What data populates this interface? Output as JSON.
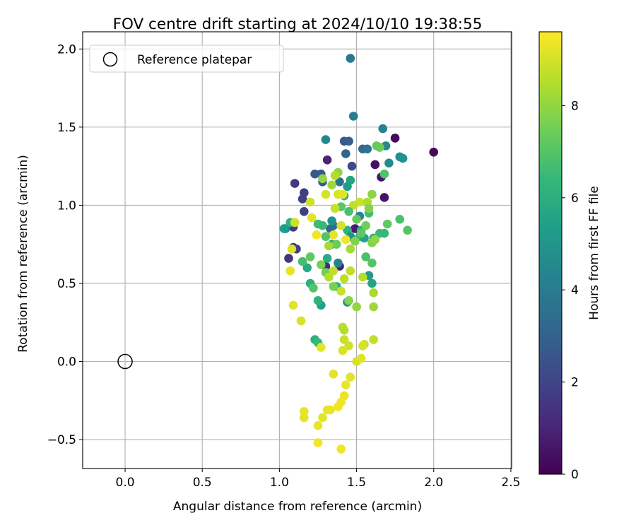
{
  "chart_data": {
    "type": "scatter",
    "title": "FOV centre drift starting at 2024/10/10 19:38:55",
    "xlabel": "Angular distance from reference (arcmin)",
    "ylabel": "Rotation from reference (arcmin)",
    "xlim": [
      -0.275,
      2.505
    ],
    "ylim": [
      -0.685,
      2.11
    ],
    "xticks": [
      0.0,
      0.5,
      1.0,
      1.5,
      2.0,
      2.5
    ],
    "xtick_labels": [
      "0.0",
      "0.5",
      "1.0",
      "1.5",
      "2.0",
      "2.5"
    ],
    "yticks": [
      -0.5,
      0.0,
      0.5,
      1.0,
      1.5,
      2.0
    ],
    "ytick_labels": [
      "−0.5",
      "0.0",
      "0.5",
      "1.0",
      "1.5",
      "2.0"
    ],
    "grid": true,
    "legend": {
      "position": "top-left",
      "entries": [
        "Reference platepar"
      ]
    },
    "reference_point": {
      "x": 0.0,
      "y": 0.0,
      "label": "Reference platepar"
    },
    "colorbar": {
      "label": "Hours from first FF file",
      "range": [
        0,
        9.6
      ],
      "ticks": [
        0,
        2,
        4,
        6,
        8
      ],
      "tick_labels": [
        "0",
        "2",
        "4",
        "6",
        "8"
      ],
      "colormap": "viridis",
      "colormap_stops": [
        "#440154",
        "#482878",
        "#3e4989",
        "#31688e",
        "#26828e",
        "#1f9e89",
        "#35b779",
        "#6ece58",
        "#b5de2b",
        "#fde725"
      ]
    },
    "points": [
      [
        2.0,
        1.34,
        0.2
      ],
      [
        1.75,
        1.43,
        0.3
      ],
      [
        1.68,
        1.05,
        0.5
      ],
      [
        1.62,
        1.26,
        0.4
      ],
      [
        1.66,
        1.18,
        0.6
      ],
      [
        1.49,
        0.85,
        0.8
      ],
      [
        1.31,
        1.29,
        1.0
      ],
      [
        1.39,
        0.61,
        0.9
      ],
      [
        1.3,
        0.61,
        1.1
      ],
      [
        1.06,
        0.66,
        1.5
      ],
      [
        1.09,
        0.73,
        1.6
      ],
      [
        1.11,
        0.72,
        1.7
      ],
      [
        1.09,
        0.86,
        1.8
      ],
      [
        1.1,
        1.14,
        1.6
      ],
      [
        1.16,
        1.08,
        1.8
      ],
      [
        1.15,
        1.04,
        1.9
      ],
      [
        1.16,
        0.96,
        1.8
      ],
      [
        1.47,
        1.25,
        2.2
      ],
      [
        1.42,
        1.41,
        2.7
      ],
      [
        1.45,
        1.41,
        2.9
      ],
      [
        1.27,
        1.2,
        2.7
      ],
      [
        1.23,
        1.2,
        2.6
      ],
      [
        1.28,
        1.15,
        2.6
      ],
      [
        1.54,
        1.36,
        3.3
      ],
      [
        1.57,
        1.36,
        3.6
      ],
      [
        1.43,
        1.33,
        3.1
      ],
      [
        1.46,
        1.94,
        3.8
      ],
      [
        1.48,
        1.57,
        4.1
      ],
      [
        1.67,
        1.49,
        4.3
      ],
      [
        1.3,
        1.42,
        4.4
      ],
      [
        1.69,
        1.38,
        4.5
      ],
      [
        1.71,
        1.27,
        4.6
      ],
      [
        1.78,
        1.31,
        4.7
      ],
      [
        1.8,
        1.3,
        4.9
      ],
      [
        1.39,
        1.15,
        3.5
      ],
      [
        1.33,
        0.85,
        3.2
      ],
      [
        1.35,
        0.87,
        3.4
      ],
      [
        1.38,
        0.63,
        4.3
      ],
      [
        1.44,
        0.38,
        4.7
      ],
      [
        1.58,
        0.55,
        5.2
      ],
      [
        1.52,
        0.93,
        4.4
      ],
      [
        1.6,
        0.5,
        5.6
      ],
      [
        1.18,
        0.6,
        5.8
      ],
      [
        1.2,
        0.5,
        6.0
      ],
      [
        1.27,
        0.36,
        5.5
      ],
      [
        1.25,
        0.39,
        6.2
      ],
      [
        1.37,
        0.48,
        6.0
      ],
      [
        1.23,
        0.14,
        6.1
      ],
      [
        1.25,
        0.12,
        6.5
      ],
      [
        1.34,
        0.75,
        5.7
      ],
      [
        1.44,
        0.84,
        6.1
      ],
      [
        1.52,
        0.8,
        6.3
      ],
      [
        1.65,
        0.82,
        6.5
      ],
      [
        1.68,
        0.82,
        6.4
      ],
      [
        1.61,
        0.79,
        6.2
      ],
      [
        1.58,
        0.95,
        6.7
      ],
      [
        1.68,
        1.2,
        6.9
      ],
      [
        1.56,
        0.67,
        6.8
      ],
      [
        1.6,
        0.63,
        7.0
      ],
      [
        1.65,
        1.37,
        7.4
      ],
      [
        1.63,
        1.38,
        7.3
      ],
      [
        1.78,
        0.91,
        6.8
      ],
      [
        1.83,
        0.84,
        7.0
      ],
      [
        1.7,
        0.88,
        7.2
      ],
      [
        1.15,
        0.64,
        6.7
      ],
      [
        1.22,
        0.47,
        7.0
      ],
      [
        1.3,
        0.57,
        7.5
      ],
      [
        1.35,
        0.48,
        7.6
      ],
      [
        1.37,
        0.75,
        7.4
      ],
      [
        1.45,
        0.39,
        7.8
      ],
      [
        1.5,
        0.35,
        8.0
      ],
      [
        1.61,
        0.35,
        8.2
      ],
      [
        1.61,
        0.44,
        8.3
      ],
      [
        1.54,
        0.54,
        8.5
      ],
      [
        1.46,
        0.72,
        8.3
      ],
      [
        1.04,
        0.85,
        4.4
      ],
      [
        1.07,
        0.89,
        6.2
      ],
      [
        1.03,
        0.85,
        5.3
      ],
      [
        1.2,
        0.67,
        7.2
      ],
      [
        1.27,
        0.62,
        7.6
      ],
      [
        1.25,
        0.88,
        6.6
      ],
      [
        1.31,
        0.66,
        5.9
      ],
      [
        1.34,
        0.9,
        5.0
      ],
      [
        1.42,
        1.06,
        6.4
      ],
      [
        1.4,
        0.99,
        7.1
      ],
      [
        1.46,
        1.16,
        5.6
      ],
      [
        1.44,
        1.12,
        5.3
      ],
      [
        1.46,
        0.8,
        4.8
      ],
      [
        1.55,
        0.79,
        5.5
      ],
      [
        1.53,
        0.84,
        6.0
      ],
      [
        1.38,
        1.21,
        7.9
      ],
      [
        1.36,
        1.19,
        8.5
      ],
      [
        1.34,
        1.13,
        8.2
      ],
      [
        1.28,
        1.17,
        8.0
      ],
      [
        1.3,
        1.07,
        9.0
      ],
      [
        1.38,
        1.07,
        9.1
      ],
      [
        1.41,
        1.07,
        9.2
      ],
      [
        1.52,
        1.02,
        8.9
      ],
      [
        1.48,
        1.0,
        8.7
      ],
      [
        1.57,
        1.02,
        8.4
      ],
      [
        1.6,
        1.07,
        7.9
      ],
      [
        1.58,
        0.98,
        7.8
      ],
      [
        1.56,
        0.87,
        7.5
      ],
      [
        1.5,
        0.91,
        7.3
      ],
      [
        1.45,
        0.96,
        6.8
      ],
      [
        1.36,
        0.98,
        8.8
      ],
      [
        1.35,
        0.81,
        9.3
      ],
      [
        1.3,
        0.8,
        7.0
      ],
      [
        1.28,
        0.87,
        6.5
      ],
      [
        1.32,
        0.74,
        8.3
      ],
      [
        1.4,
        0.87,
        9.0
      ],
      [
        1.43,
        0.78,
        9.4
      ],
      [
        1.49,
        0.77,
        7.7
      ],
      [
        1.53,
        0.82,
        7.2
      ],
      [
        1.6,
        0.76,
        7.8
      ],
      [
        1.62,
        0.78,
        8.0
      ],
      [
        1.2,
        1.02,
        8.9
      ],
      [
        1.21,
        0.92,
        9.2
      ],
      [
        1.24,
        0.81,
        9.4
      ],
      [
        1.1,
        0.89,
        8.9
      ],
      [
        1.08,
        0.72,
        9.1
      ],
      [
        1.07,
        0.58,
        9.3
      ],
      [
        1.09,
        0.36,
        9.2
      ],
      [
        1.14,
        0.26,
        9.0
      ],
      [
        1.32,
        0.54,
        8.5
      ],
      [
        1.35,
        0.58,
        8.7
      ],
      [
        1.4,
        0.45,
        8.8
      ],
      [
        1.42,
        0.53,
        8.6
      ],
      [
        1.46,
        0.58,
        8.7
      ],
      [
        1.41,
        0.22,
        8.6
      ],
      [
        1.42,
        0.2,
        8.5
      ],
      [
        1.42,
        0.14,
        8.8
      ],
      [
        1.45,
        0.1,
        8.9
      ],
      [
        1.27,
        0.09,
        9.2
      ],
      [
        1.41,
        0.07,
        9.1
      ],
      [
        1.5,
        0.0,
        9.0
      ],
      [
        1.53,
        0.02,
        9.2
      ],
      [
        1.55,
        0.11,
        8.9
      ],
      [
        1.54,
        0.1,
        9.0
      ],
      [
        1.61,
        0.14,
        8.7
      ],
      [
        1.35,
        -0.08,
        9.2
      ],
      [
        1.46,
        -0.1,
        9.2
      ],
      [
        1.43,
        -0.15,
        9.3
      ],
      [
        1.42,
        -0.22,
        9.3
      ],
      [
        1.4,
        -0.26,
        9.4
      ],
      [
        1.38,
        -0.29,
        9.4
      ],
      [
        1.33,
        -0.31,
        9.3
      ],
      [
        1.31,
        -0.31,
        9.3
      ],
      [
        1.16,
        -0.32,
        9.3
      ],
      [
        1.16,
        -0.36,
        9.2
      ],
      [
        1.28,
        -0.36,
        9.2
      ],
      [
        1.25,
        -0.41,
        9.3
      ],
      [
        1.25,
        -0.52,
        9.4
      ],
      [
        1.4,
        -0.56,
        9.4
      ]
    ]
  }
}
